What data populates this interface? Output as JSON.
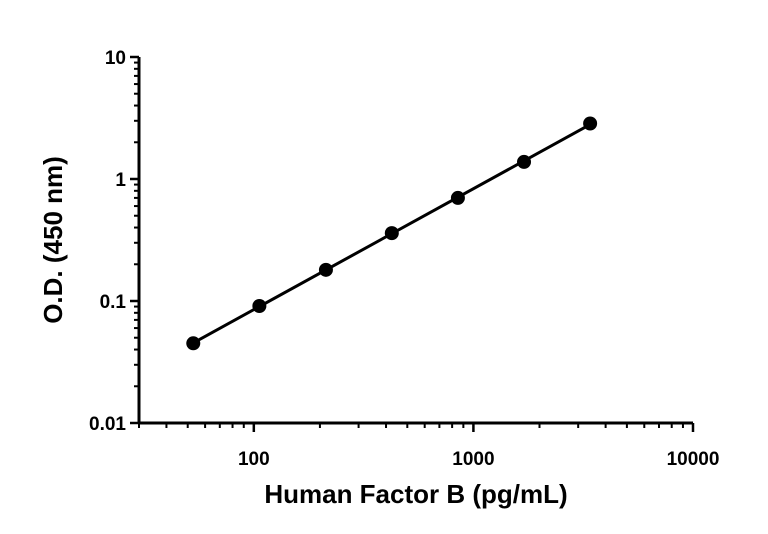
{
  "chart_data": {
    "type": "scatter",
    "title": "",
    "xlabel": "Human Factor B (pg/mL)",
    "ylabel": "O.D. (450 nm)",
    "xscale": "log",
    "yscale": "log",
    "xlim": [
      30,
      10000
    ],
    "ylim": [
      0.01,
      10
    ],
    "xticks": [
      100,
      1000,
      10000
    ],
    "xtick_labels": [
      "100",
      "1000",
      "10000"
    ],
    "yticks": [
      0.01,
      0.1,
      1,
      10
    ],
    "ytick_labels": [
      "0.01",
      "0.1",
      "1",
      "10"
    ],
    "grid": false,
    "legend": "none",
    "fit_line": true,
    "color": "#000000",
    "series": [
      {
        "x": [
          53,
          106,
          213,
          425,
          850,
          1700,
          3400
        ],
        "y": [
          0.045,
          0.091,
          0.18,
          0.36,
          0.7,
          1.38,
          2.85
        ]
      }
    ]
  }
}
